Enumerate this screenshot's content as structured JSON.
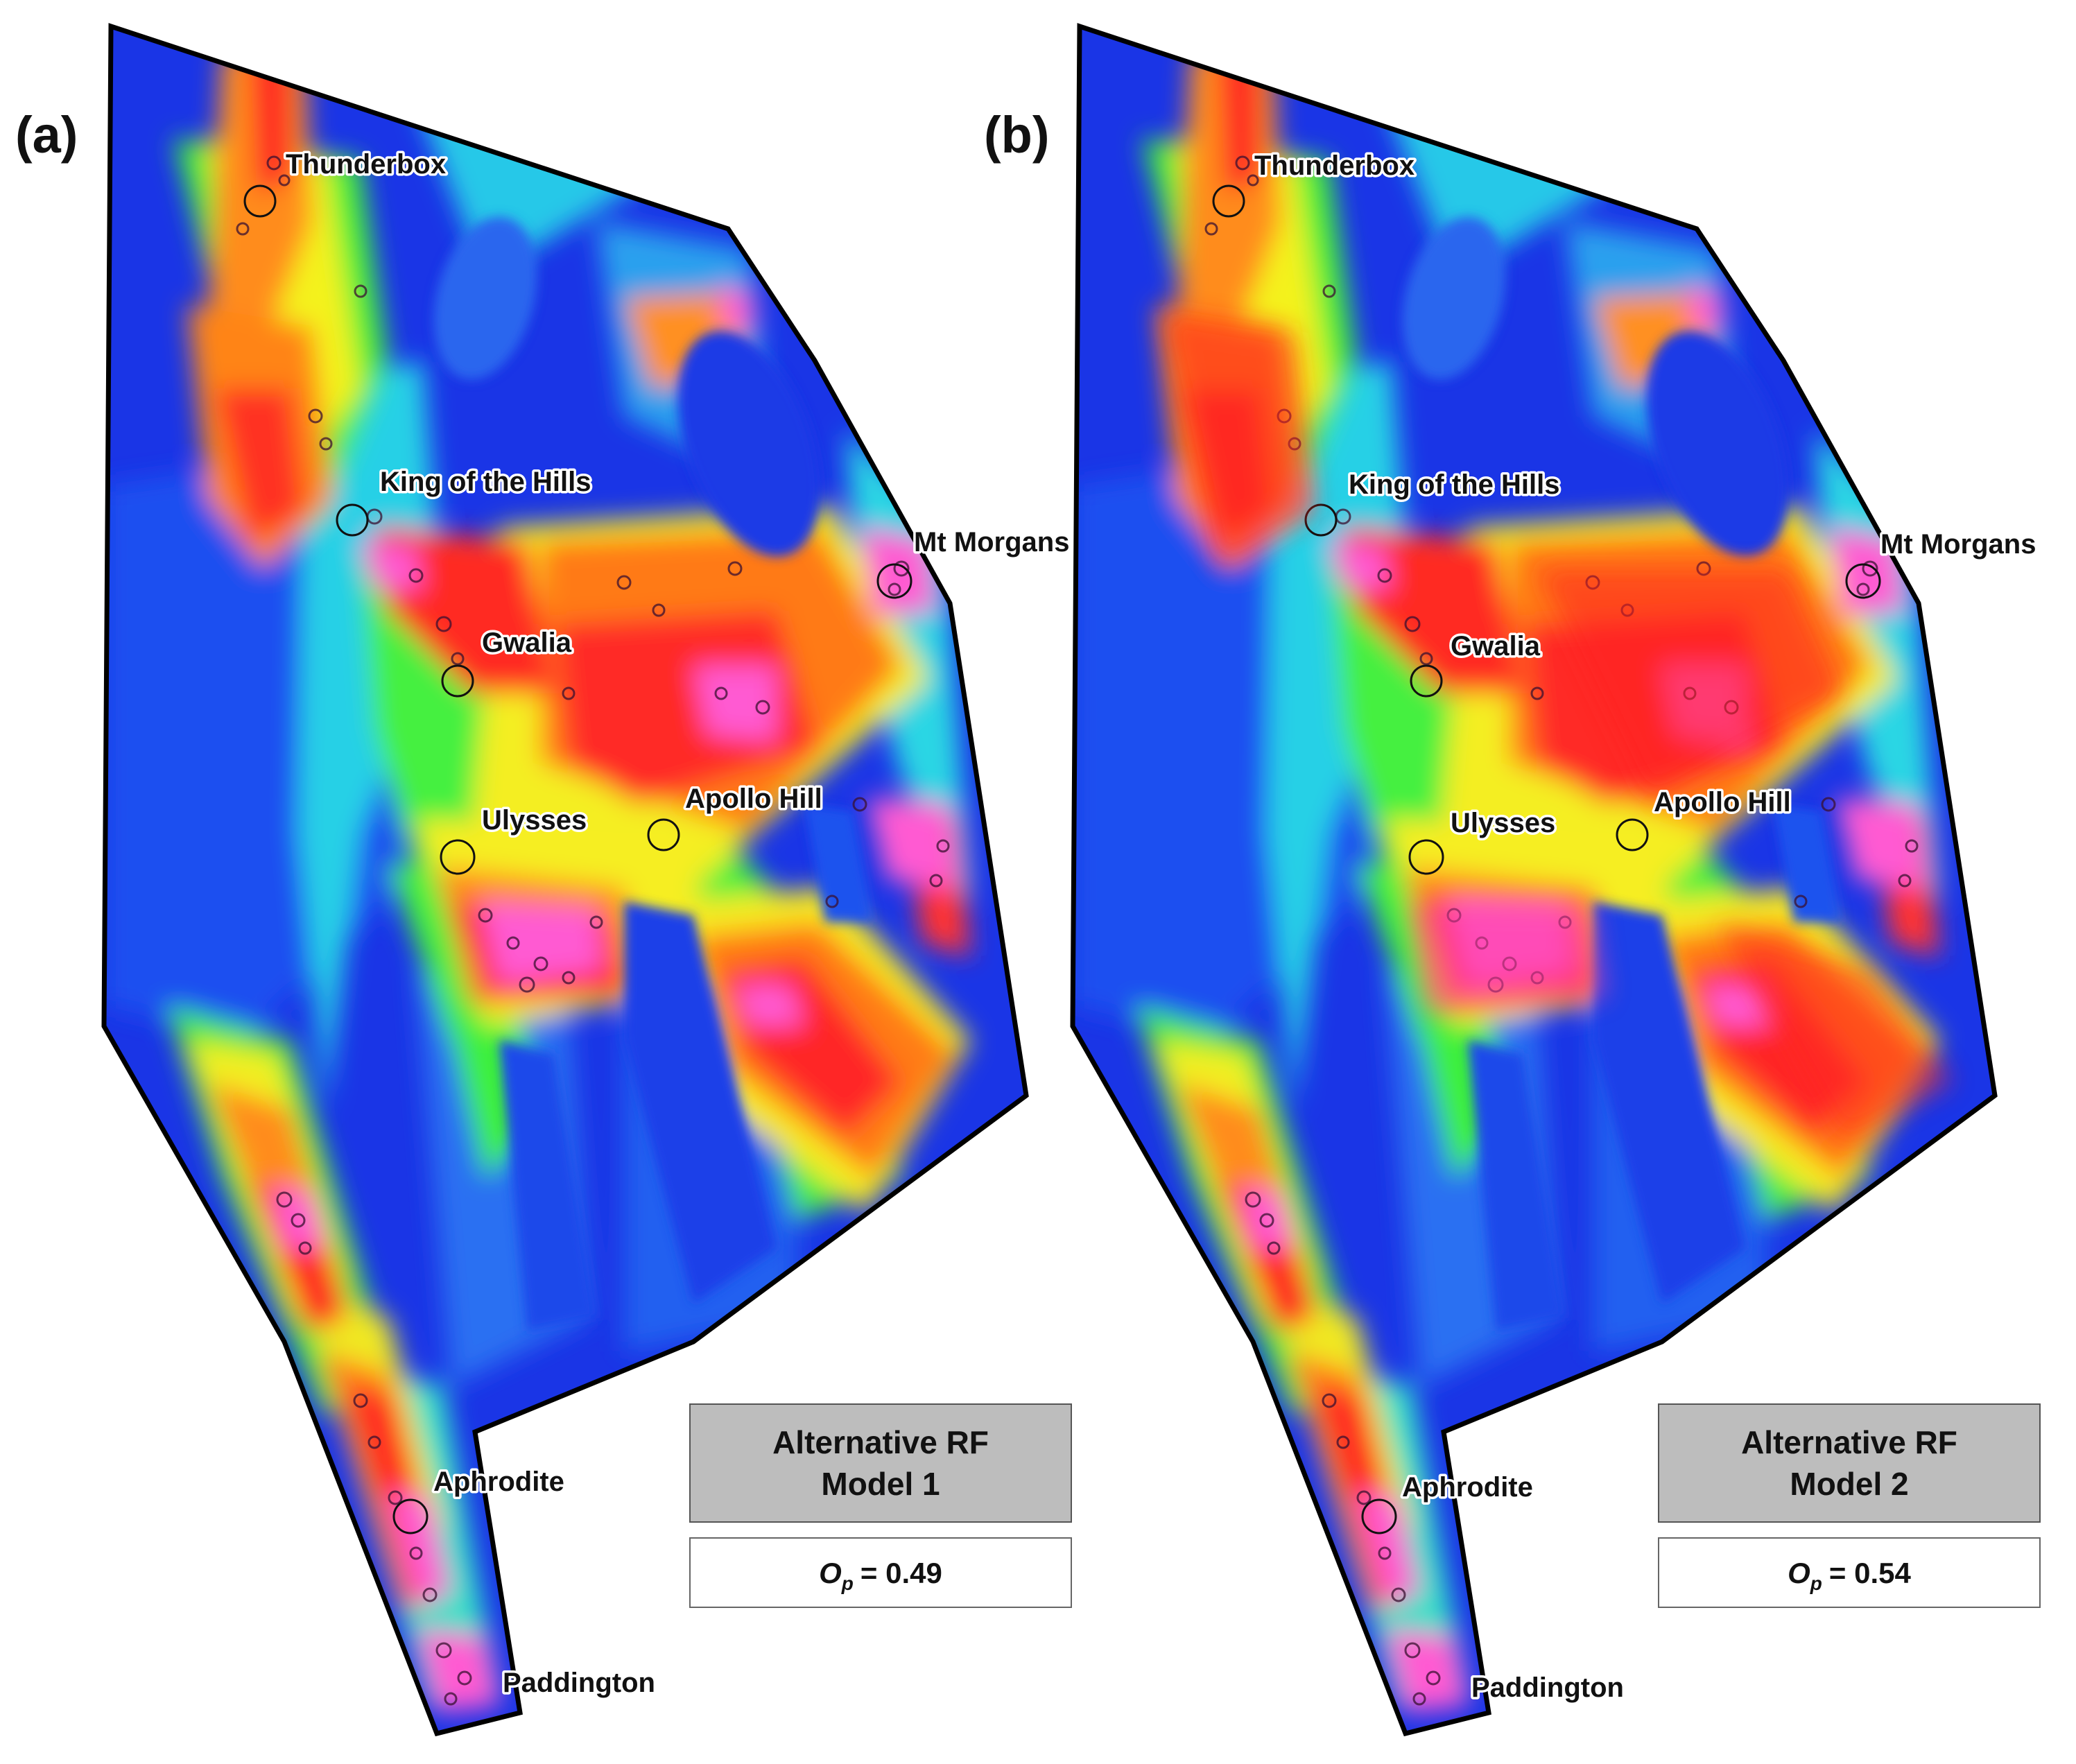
{
  "panels": [
    {
      "label": "(a)",
      "model_title_line1": "Alternative RF",
      "model_title_line2": "Model 1",
      "op_symbol": "O",
      "op_subscript": "p",
      "op_value": "= 0.49"
    },
    {
      "label": "(b)",
      "model_title_line1": "Alternative RF",
      "model_title_line2": "Model 2",
      "op_symbol": "O",
      "op_subscript": "p",
      "op_value": "= 0.54"
    }
  ],
  "sites": [
    {
      "name": "Thunderbox"
    },
    {
      "name": "King of the Hills"
    },
    {
      "name": "Mt Morgans"
    },
    {
      "name": "Gwalia"
    },
    {
      "name": "Ulysses"
    },
    {
      "name": "Apollo Hill"
    },
    {
      "name": "Aphrodite"
    },
    {
      "name": "Paddington"
    }
  ],
  "colors": {
    "very_low": "#1a35e6",
    "low": "#2a7cf0",
    "mid_low": "#22d6e8",
    "mid": "#3cf23c",
    "mid_high": "#f4f21e",
    "high": "#ff8c1a",
    "very_high": "#ff2020",
    "highest": "#ff5ad2",
    "box_fill": "#bdbdbd",
    "outline": "#000000"
  }
}
